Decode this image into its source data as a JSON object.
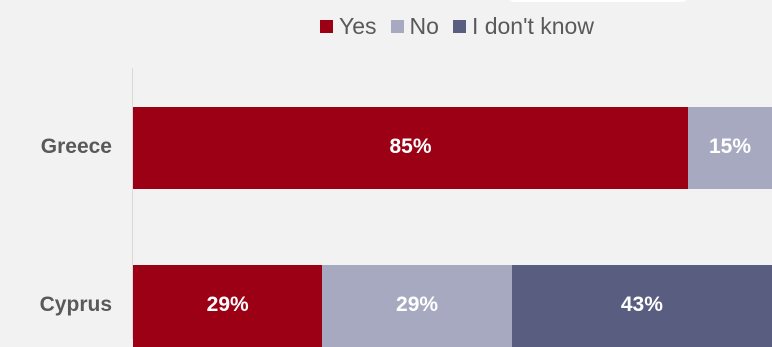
{
  "chart_data": {
    "type": "bar",
    "orientation": "horizontal",
    "stacked": true,
    "categories": [
      "Greece",
      "Cyprus"
    ],
    "series": [
      {
        "name": "Yes",
        "color": "#9b0014",
        "values": [
          85,
          29
        ],
        "labels": [
          "85%",
          "29%"
        ]
      },
      {
        "name": "No",
        "color": "#a6a9bf",
        "values": [
          15,
          29
        ],
        "labels": [
          "15%",
          "29%"
        ]
      },
      {
        "name": "I don't know",
        "color": "#595d7f",
        "values": [
          0,
          43
        ],
        "labels": [
          "",
          "43%"
        ]
      }
    ],
    "unit": "%",
    "legend_position": "top"
  }
}
